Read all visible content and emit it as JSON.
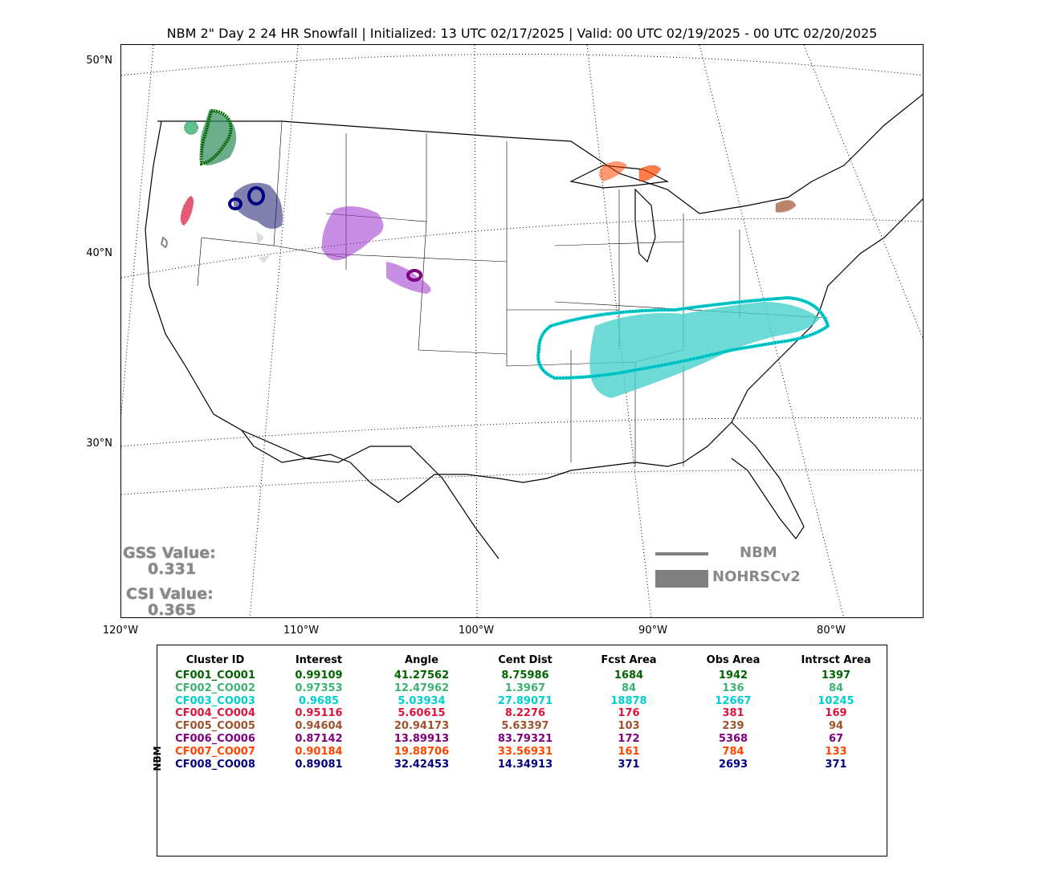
{
  "title": "NBM 2\" Day 2 24 HR Snowfall | Initialized: 13 UTC 02/17/2025 | Valid: 00 UTC 02/19/2025 - 00 UTC 02/20/2025",
  "lat_labels": [
    "50°N",
    "40°N",
    "30°N"
  ],
  "lon_labels": [
    "120°W",
    "110°W",
    "100°W",
    "90°W",
    "80°W"
  ],
  "stats": {
    "gss_label": "GSS Value:",
    "gss_value": "0.331",
    "csi_label": "CSI Value:",
    "csi_value": "0.365"
  },
  "legend": {
    "forecast": "NBM",
    "observed": "NOHRSCv2",
    "line_color": "#808080"
  },
  "table": {
    "row_axis_label": "NBM",
    "headers": [
      "Cluster ID",
      "Interest",
      "Angle",
      "Cent Dist",
      "Fcst Area",
      "Obs Area",
      "Intrsct Area"
    ],
    "rows": [
      {
        "color": "#006400",
        "cells": [
          "CF001_CO001",
          "0.99109",
          "41.27562",
          "8.75986",
          "1684",
          "1942",
          "1397"
        ]
      },
      {
        "color": "#3cb371",
        "cells": [
          "CF002_CO002",
          "0.97353",
          "12.47962",
          "1.3967",
          "84",
          "136",
          "84"
        ]
      },
      {
        "color": "#00ced1",
        "cells": [
          "CF003_CO003",
          "0.9685",
          "5.03934",
          "27.89071",
          "18878",
          "12667",
          "10245"
        ]
      },
      {
        "color": "#dc143c",
        "cells": [
          "CF004_CO004",
          "0.95116",
          "5.60615",
          "8.2276",
          "176",
          "381",
          "169"
        ]
      },
      {
        "color": "#a0522d",
        "cells": [
          "CF005_CO005",
          "0.94604",
          "20.94173",
          "5.63397",
          "103",
          "239",
          "94"
        ]
      },
      {
        "color": "#800080",
        "cells": [
          "CF006_CO006",
          "0.87142",
          "13.89913",
          "83.79321",
          "172",
          "5368",
          "67"
        ]
      },
      {
        "color": "#ff4500",
        "cells": [
          "CF007_CO007",
          "0.90184",
          "19.88706",
          "33.56931",
          "161",
          "784",
          "133"
        ]
      },
      {
        "color": "#000080",
        "cells": [
          "CF008_CO008",
          "0.89081",
          "32.42453",
          "14.34913",
          "371",
          "2693",
          "371"
        ]
      }
    ]
  },
  "clusters": [
    {
      "id": "CF001_CO001",
      "color": "#006400",
      "fill": "#2e8b57"
    },
    {
      "id": "CF002_CO002",
      "color": "#3cb371",
      "fill": "#3cb371"
    },
    {
      "id": "CF003_CO003",
      "color": "#00ced1",
      "fill": "#48d1cc"
    },
    {
      "id": "CF004_CO004",
      "color": "#dc143c",
      "fill": "#dc143c"
    },
    {
      "id": "CF005_CO005",
      "color": "#a0522d",
      "fill": "#a0522d"
    },
    {
      "id": "CF006_CO006",
      "color": "#800080",
      "fill": "#9932cc"
    },
    {
      "id": "CF007_CO007",
      "color": "#ff4500",
      "fill": "#ff4500"
    },
    {
      "id": "CF008_CO008",
      "color": "#000080",
      "fill": "#191970"
    }
  ]
}
